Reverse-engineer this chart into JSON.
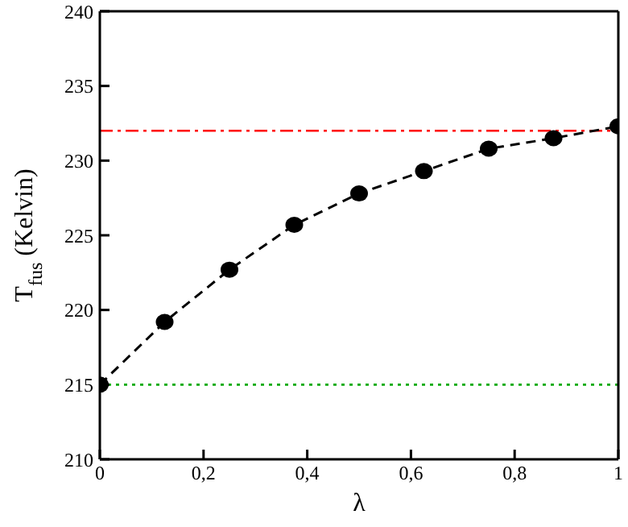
{
  "chart_data": {
    "type": "line",
    "xlabel": "λ",
    "ylabel": "T$_{fus}$ (Kelvin)",
    "x": [
      0,
      0.125,
      0.25,
      0.375,
      0.5,
      0.625,
      0.75,
      0.875,
      1
    ],
    "series": [
      {
        "color": "#000000",
        "values": [
          215,
          219.2,
          222.7,
          225.7,
          227.8,
          229.3,
          230.8,
          231.5,
          232.3
        ]
      }
    ],
    "xlim": [
      0,
      1
    ],
    "xticks": [
      0,
      {
        "value": 0.2,
        "label": "0,2"
      },
      {
        "value": 0.4,
        "label": "0,4"
      },
      {
        "value": 0.6,
        "label": "0,6"
      },
      {
        "value": 0.8,
        "label": "0,8"
      },
      1
    ],
    "ylim": [
      210,
      240
    ],
    "yticks": [
      210,
      215,
      220,
      225,
      230,
      235,
      240
    ],
    "ref_lines": [
      {
        "axis": "y",
        "value": 232,
        "color": "#ff0000",
        "line_style": "dashdot"
      },
      {
        "axis": "y",
        "value": 215,
        "color": "#00aa00",
        "line_style": "dotted"
      }
    ],
    "marker": "circle",
    "line_style": "dashed",
    "grid": false,
    "legend": false
  }
}
